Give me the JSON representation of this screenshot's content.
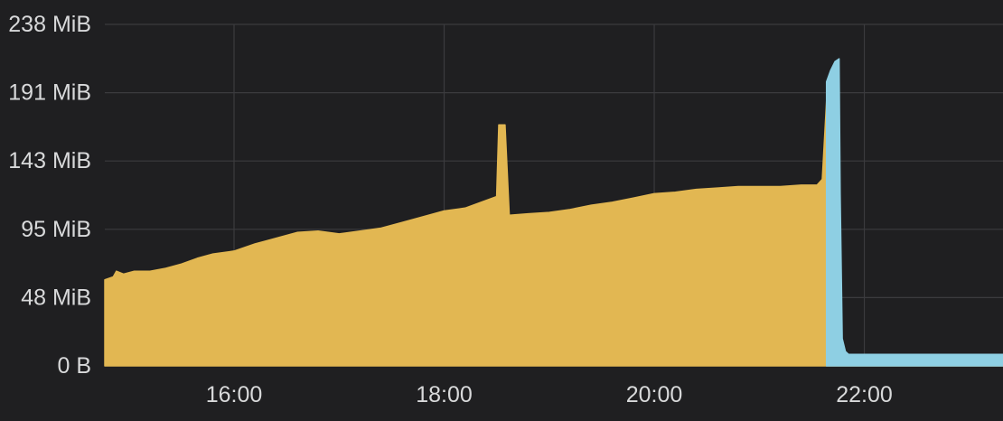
{
  "chart_data": {
    "type": "area",
    "title": "",
    "xlabel": "",
    "ylabel": "",
    "grid": true,
    "legend": "none",
    "x_unit": "hours of day",
    "xlim": [
      14.77,
      23.32
    ],
    "ylim": [
      0,
      238
    ],
    "y_ticks": [
      {
        "value": 0,
        "label": "0 B"
      },
      {
        "value": 47.6,
        "label": "48 MiB"
      },
      {
        "value": 95.2,
        "label": "95 MiB"
      },
      {
        "value": 142.8,
        "label": "143 MiB"
      },
      {
        "value": 190.4,
        "label": "191 MiB"
      },
      {
        "value": 238,
        "label": "238 MiB"
      }
    ],
    "x_ticks": [
      {
        "value": 16,
        "label": "16:00"
      },
      {
        "value": 18,
        "label": "18:00"
      },
      {
        "value": 20,
        "label": "20:00"
      },
      {
        "value": 22,
        "label": "22:00"
      }
    ],
    "series": [
      {
        "color": "#e2b752",
        "points": [
          [
            14.77,
            60
          ],
          [
            14.85,
            62
          ],
          [
            14.88,
            66
          ],
          [
            14.95,
            64
          ],
          [
            15.05,
            66
          ],
          [
            15.2,
            66
          ],
          [
            15.35,
            68
          ],
          [
            15.5,
            71
          ],
          [
            15.65,
            75
          ],
          [
            15.8,
            78
          ],
          [
            16.0,
            80
          ],
          [
            16.2,
            85
          ],
          [
            16.3,
            87
          ],
          [
            16.45,
            90
          ],
          [
            16.6,
            93
          ],
          [
            16.8,
            94
          ],
          [
            17.0,
            92
          ],
          [
            17.2,
            94
          ],
          [
            17.4,
            96
          ],
          [
            17.6,
            100
          ],
          [
            17.8,
            104
          ],
          [
            18.0,
            108
          ],
          [
            18.2,
            110
          ],
          [
            18.35,
            114
          ],
          [
            18.5,
            118
          ],
          [
            18.52,
            168
          ],
          [
            18.58,
            168
          ],
          [
            18.62,
            105
          ],
          [
            18.8,
            106
          ],
          [
            19.0,
            107
          ],
          [
            19.2,
            109
          ],
          [
            19.4,
            112
          ],
          [
            19.6,
            114
          ],
          [
            19.8,
            117
          ],
          [
            20.0,
            120
          ],
          [
            20.2,
            121
          ],
          [
            20.4,
            123
          ],
          [
            20.6,
            124
          ],
          [
            20.8,
            125
          ],
          [
            21.0,
            125
          ],
          [
            21.2,
            125
          ],
          [
            21.4,
            126
          ],
          [
            21.55,
            126
          ],
          [
            21.6,
            130
          ],
          [
            21.65,
            198
          ],
          [
            21.7,
            205
          ],
          [
            21.75,
            208
          ],
          [
            21.78,
            18
          ],
          [
            21.82,
            0
          ],
          [
            23.32,
            0
          ]
        ]
      },
      {
        "color": "#8ecfe3",
        "points": [
          [
            21.64,
            198
          ],
          [
            21.68,
            206
          ],
          [
            21.72,
            212
          ],
          [
            21.76,
            214
          ],
          [
            21.77,
            120
          ],
          [
            21.79,
            19
          ],
          [
            21.82,
            10
          ],
          [
            21.85,
            8
          ],
          [
            23.32,
            8
          ]
        ]
      }
    ]
  }
}
